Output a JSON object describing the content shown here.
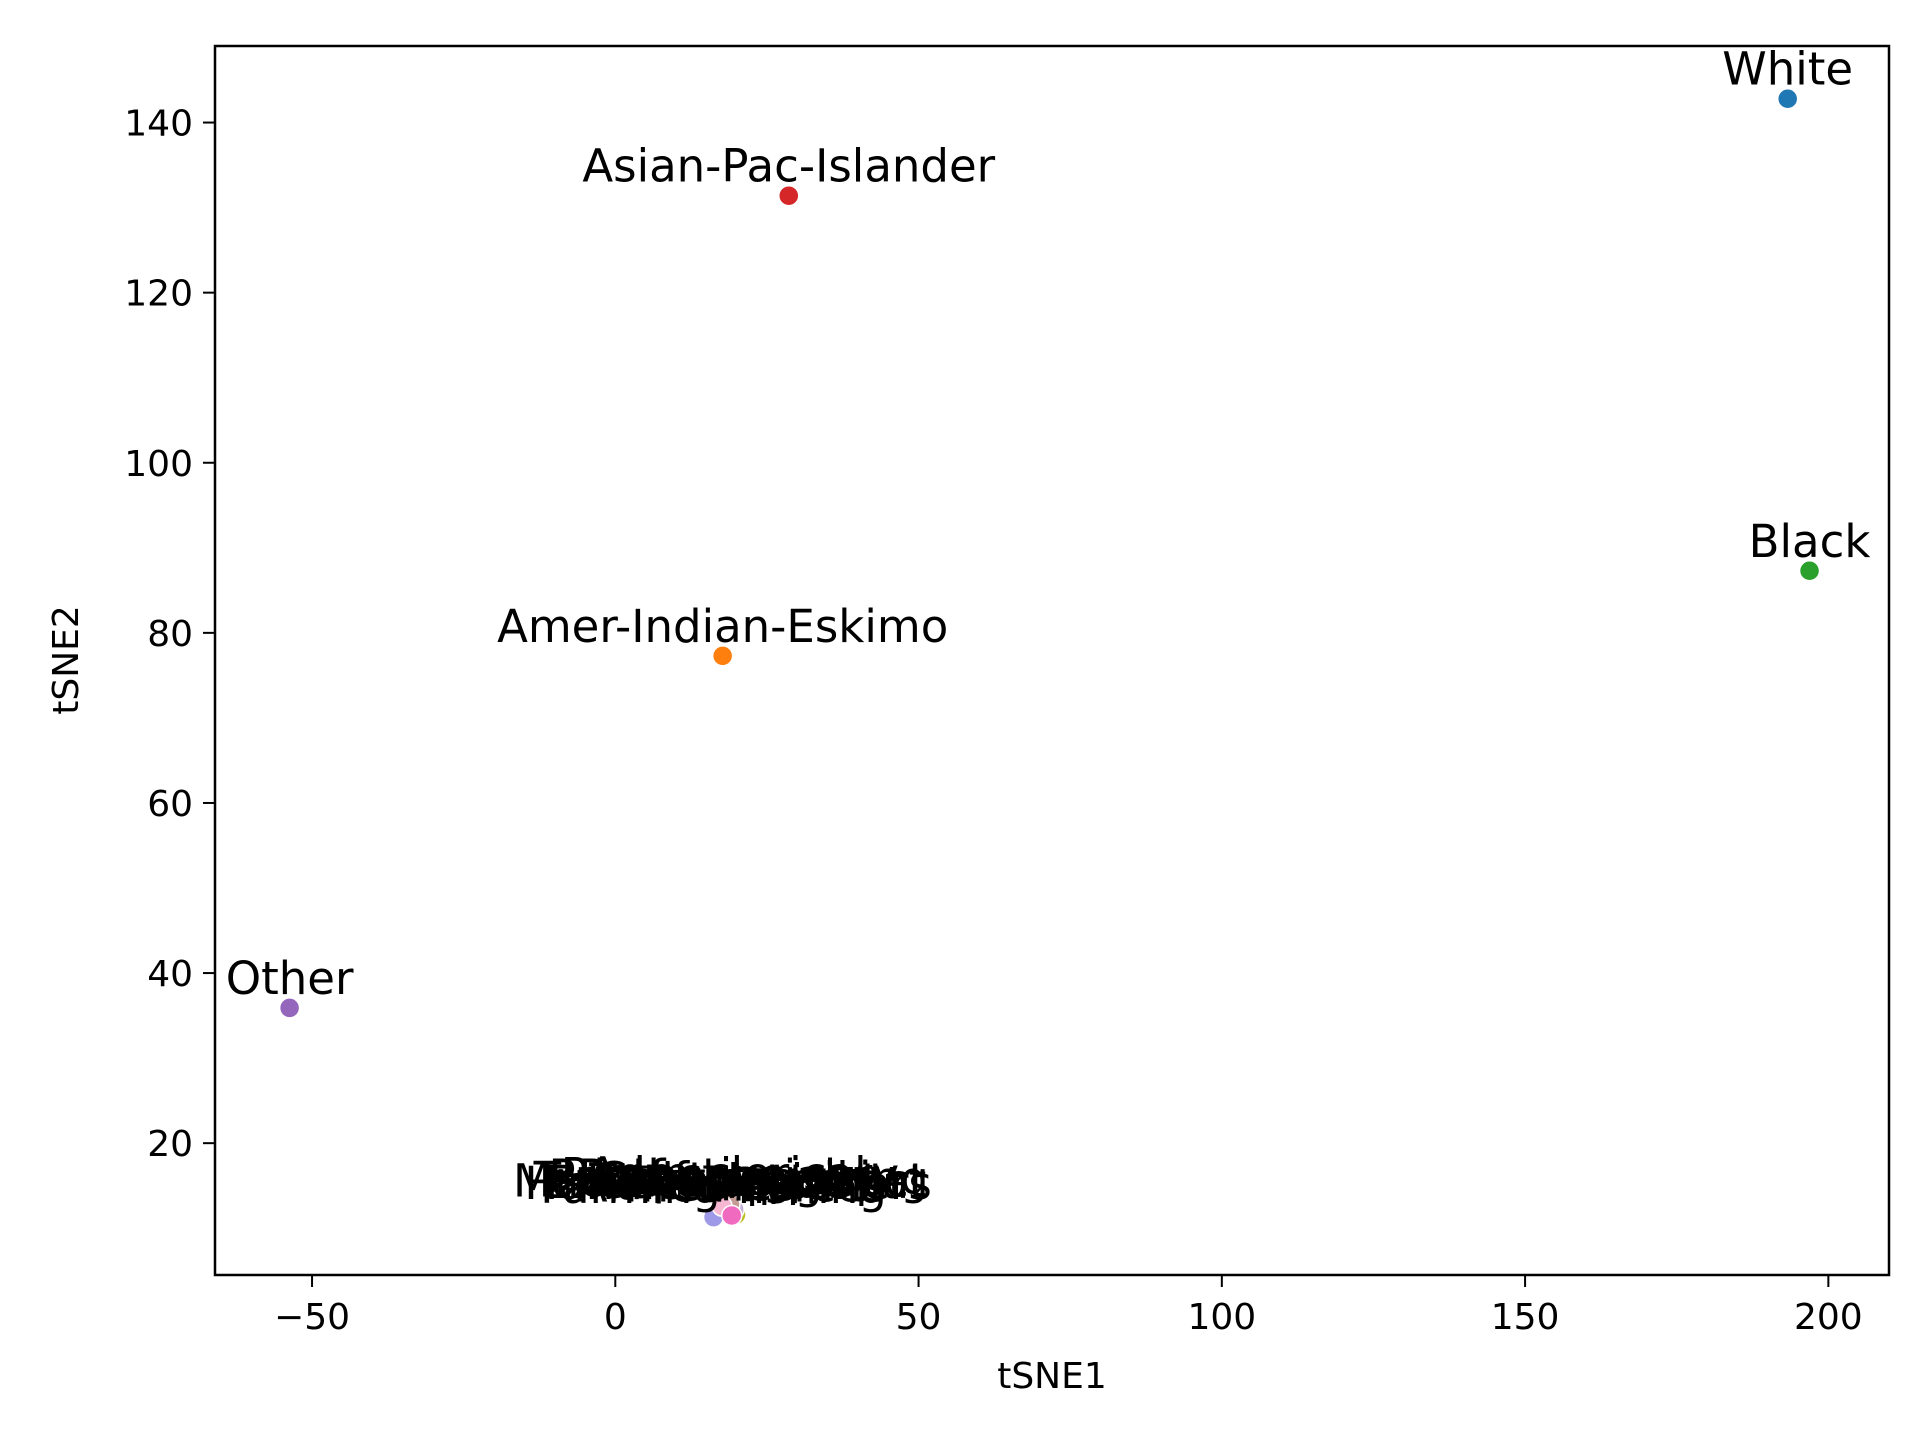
{
  "chart_data": {
    "type": "scatter",
    "title": "",
    "xlabel": "tSNE1",
    "ylabel": "tSNE2",
    "xlim": [
      -66,
      210
    ],
    "ylim": [
      4.5,
      149
    ],
    "xticks": [
      -50,
      0,
      50,
      100,
      150,
      200
    ],
    "yticks": [
      20,
      40,
      60,
      80,
      100,
      120,
      140
    ],
    "xtick_labels": [
      "−50",
      "0",
      "50",
      "100",
      "150",
      "200"
    ],
    "ytick_labels": [
      "20",
      "40",
      "60",
      "80",
      "100",
      "120",
      "140"
    ],
    "grid": false,
    "points": [
      {
        "label": "White",
        "x": 193.3,
        "y": 142.8,
        "color": "#1f77b4"
      },
      {
        "label": "Amer-Indian-Eskimo",
        "x": 17.7,
        "y": 77.3,
        "color": "#ff7f0e"
      },
      {
        "label": "Black",
        "x": 196.9,
        "y": 87.3,
        "color": "#2ca02c"
      },
      {
        "label": "Asian-Pac-Islander",
        "x": 28.6,
        "y": 131.4,
        "color": "#d62728"
      },
      {
        "label": "Other",
        "x": -53.7,
        "y": 35.9,
        "color": "#9467bd"
      },
      {
        "label": "Prof-specialty",
        "x": 18.8,
        "y": 12.6,
        "color": "#8c564b"
      },
      {
        "label": "Exec-managerial",
        "x": 19.4,
        "y": 11.9,
        "color": "#e377c2"
      },
      {
        "label": "Adm-clerical",
        "x": 18.4,
        "y": 12.9,
        "color": "#7f7f7f"
      },
      {
        "label": "Sales",
        "x": 19.9,
        "y": 11.6,
        "color": "#bcbd22"
      },
      {
        "label": "Craft-repair",
        "x": 18.1,
        "y": 12.3,
        "color": "#17becf"
      },
      {
        "label": "Machine-op-inspct",
        "x": 17.2,
        "y": 12.1,
        "color": "#aec7e8"
      },
      {
        "label": "Transport-moving",
        "x": 19.1,
        "y": 12.4,
        "color": "#ffbb78"
      },
      {
        "label": "Handlers-cleaners",
        "x": 18.6,
        "y": 11.8,
        "color": "#98df8a"
      },
      {
        "label": "Farming-fishing",
        "x": 16.2,
        "y": 11.3,
        "color": "#9e9ae8"
      },
      {
        "label": "Tech-support",
        "x": 19.6,
        "y": 12.2,
        "color": "#c5b0d5"
      },
      {
        "label": "Protective-serv",
        "x": 18.9,
        "y": 12.8,
        "color": "#c49c94"
      },
      {
        "label": "Priv-house-serv",
        "x": 17.6,
        "y": 12.6,
        "color": "#f7b6d2"
      },
      {
        "label": "Armed-Forces",
        "x": 19.2,
        "y": 11.5,
        "color": "#f06bbf"
      }
    ]
  }
}
